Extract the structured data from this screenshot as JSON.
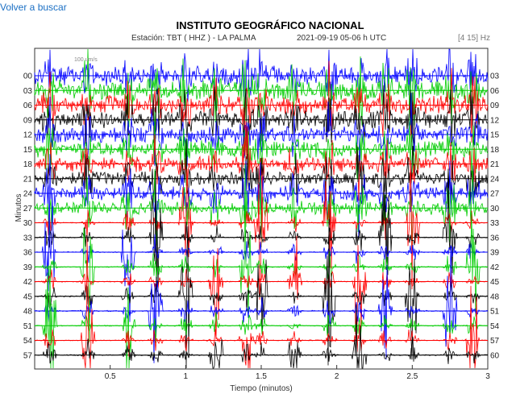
{
  "nav": {
    "back_label": "Volver a buscar"
  },
  "chart_data": {
    "type": "line",
    "title": "INSTITUTO GEOGRÁFICO NACIONAL",
    "station_label": "Estación:  TBT ( HHZ ) - LA PALMA",
    "datetime_label": "2021-09-19  05-06 h UTC",
    "filter_label": "[4 15] Hz",
    "scale_label": "100 um/s",
    "xlabel": "Tiempo (minutos)",
    "ylabel": "Minutos",
    "xlim": [
      0,
      3
    ],
    "x_ticks": [
      0.5,
      1,
      1.5,
      2,
      2.5,
      3
    ],
    "x_tick_labels": [
      "0.5",
      "1",
      "1.5",
      "2",
      "2.5",
      "3"
    ],
    "left_labels": [
      "00",
      "03",
      "06",
      "09",
      "12",
      "15",
      "18",
      "21",
      "24",
      "27",
      "30",
      "33",
      "36",
      "39",
      "42",
      "45",
      "48",
      "51",
      "54",
      "57"
    ],
    "right_labels": [
      "03",
      "06",
      "09",
      "12",
      "15",
      "18",
      "21",
      "24",
      "27",
      "30",
      "33",
      "36",
      "39",
      "42",
      "45",
      "48",
      "51",
      "54",
      "57",
      "60"
    ],
    "trace_colors": [
      "#0000ff",
      "#00cc00",
      "#ff0000",
      "#000000"
    ],
    "grid": true,
    "events": [
      {
        "x": 0.1,
        "amp": 1.0
      },
      {
        "x": 0.35,
        "amp": 0.9
      },
      {
        "x": 0.62,
        "amp": 0.8
      },
      {
        "x": 0.8,
        "amp": 1.0
      },
      {
        "x": 1.0,
        "amp": 0.9
      },
      {
        "x": 1.2,
        "amp": 0.7
      },
      {
        "x": 1.4,
        "amp": 1.0
      },
      {
        "x": 1.5,
        "amp": 0.8
      },
      {
        "x": 1.72,
        "amp": 0.6
      },
      {
        "x": 1.95,
        "amp": 0.9
      },
      {
        "x": 2.15,
        "amp": 1.0
      },
      {
        "x": 2.32,
        "amp": 0.8
      },
      {
        "x": 2.5,
        "amp": 1.0
      },
      {
        "x": 2.75,
        "amp": 0.9
      },
      {
        "x": 2.9,
        "amp": 0.8
      }
    ]
  }
}
